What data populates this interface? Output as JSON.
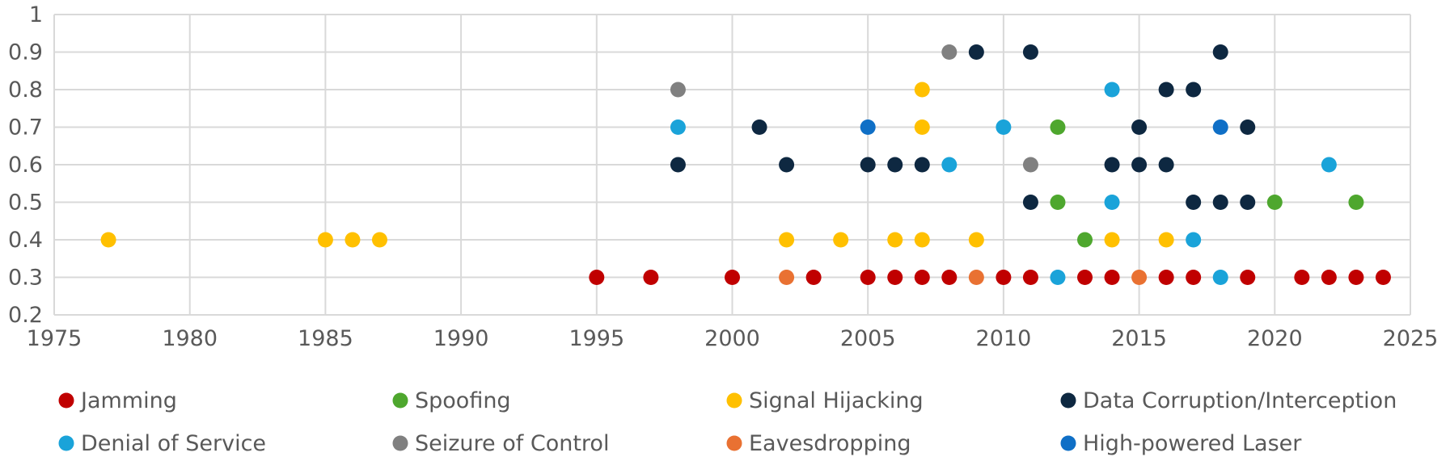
{
  "chart_data": {
    "type": "scatter",
    "title": "",
    "xlabel": "",
    "ylabel": "",
    "xlim": [
      1975,
      2025
    ],
    "ylim": [
      0.2,
      1
    ],
    "x_ticks": [
      1975,
      1980,
      1985,
      1990,
      1995,
      2000,
      2005,
      2010,
      2015,
      2020,
      2025
    ],
    "y_ticks": [
      0.2,
      0.3,
      0.4,
      0.5,
      0.6,
      0.7,
      0.8,
      0.9,
      1
    ],
    "x_tick_labels": [
      "1975",
      "1980",
      "1985",
      "1990",
      "1995",
      "2000",
      "2005",
      "2010",
      "2015",
      "2020",
      "2025"
    ],
    "y_tick_labels": [
      "0.2",
      "0.3",
      "0.4",
      "0.5",
      "0.6",
      "0.7",
      "0.8",
      "0.9",
      "1"
    ],
    "grid": true,
    "legend_position": "bottom",
    "series": [
      {
        "name": "Jamming",
        "color": "#C00000",
        "points": [
          [
            1995,
            0.3
          ],
          [
            1997,
            0.3
          ],
          [
            2000,
            0.3
          ],
          [
            2003,
            0.3
          ],
          [
            2005,
            0.3
          ],
          [
            2006,
            0.3
          ],
          [
            2007,
            0.3
          ],
          [
            2008,
            0.3
          ],
          [
            2010,
            0.3
          ],
          [
            2011,
            0.3
          ],
          [
            2013,
            0.3
          ],
          [
            2014,
            0.3
          ],
          [
            2016,
            0.3
          ],
          [
            2017,
            0.3
          ],
          [
            2019,
            0.3
          ],
          [
            2021,
            0.3
          ],
          [
            2022,
            0.3
          ],
          [
            2023,
            0.3
          ],
          [
            2024,
            0.3
          ]
        ]
      },
      {
        "name": "Spoofing",
        "color": "#4EA72E",
        "points": [
          [
            2012,
            0.7
          ],
          [
            2012,
            0.5
          ],
          [
            2013,
            0.4
          ],
          [
            2020,
            0.5
          ],
          [
            2023,
            0.5
          ]
        ]
      },
      {
        "name": "Signal Hijacking",
        "color": "#FFC000",
        "points": [
          [
            1977,
            0.4
          ],
          [
            1985,
            0.4
          ],
          [
            1986,
            0.4
          ],
          [
            1987,
            0.4
          ],
          [
            2002,
            0.4
          ],
          [
            2004,
            0.4
          ],
          [
            2006,
            0.4
          ],
          [
            2007,
            0.4
          ],
          [
            2009,
            0.4
          ],
          [
            2014,
            0.4
          ],
          [
            2016,
            0.4
          ],
          [
            2007,
            0.7
          ],
          [
            2007,
            0.8
          ]
        ]
      },
      {
        "name": "Data Corruption/Interception",
        "color": "#0E2841",
        "points": [
          [
            1998,
            0.6
          ],
          [
            2001,
            0.7
          ],
          [
            2002,
            0.6
          ],
          [
            2005,
            0.6
          ],
          [
            2006,
            0.6
          ],
          [
            2007,
            0.6
          ],
          [
            2009,
            0.9
          ],
          [
            2011,
            0.9
          ],
          [
            2011,
            0.5
          ],
          [
            2014,
            0.6
          ],
          [
            2015,
            0.6
          ],
          [
            2015,
            0.7
          ],
          [
            2016,
            0.6
          ],
          [
            2016,
            0.8
          ],
          [
            2017,
            0.8
          ],
          [
            2017,
            0.5
          ],
          [
            2018,
            0.9
          ],
          [
            2018,
            0.5
          ],
          [
            2019,
            0.7
          ],
          [
            2019,
            0.5
          ]
        ]
      },
      {
        "name": "Denial of Service",
        "color": "#1AA3D9",
        "points": [
          [
            1998,
            0.7
          ],
          [
            2008,
            0.6
          ],
          [
            2010,
            0.7
          ],
          [
            2012,
            0.3
          ],
          [
            2014,
            0.8
          ],
          [
            2014,
            0.5
          ],
          [
            2017,
            0.4
          ],
          [
            2018,
            0.3
          ],
          [
            2022,
            0.6
          ]
        ]
      },
      {
        "name": "Seizure of Control",
        "color": "#808080",
        "points": [
          [
            1998,
            0.8
          ],
          [
            2008,
            0.9
          ],
          [
            2011,
            0.6
          ]
        ]
      },
      {
        "name": "Eavesdropping",
        "color": "#E97132",
        "points": [
          [
            2002,
            0.3
          ],
          [
            2009,
            0.3
          ],
          [
            2015,
            0.3
          ]
        ]
      },
      {
        "name": "High-powered Laser",
        "color": "#0F6FC6",
        "points": [
          [
            2005,
            0.7
          ],
          [
            2018,
            0.7
          ]
        ]
      }
    ]
  }
}
